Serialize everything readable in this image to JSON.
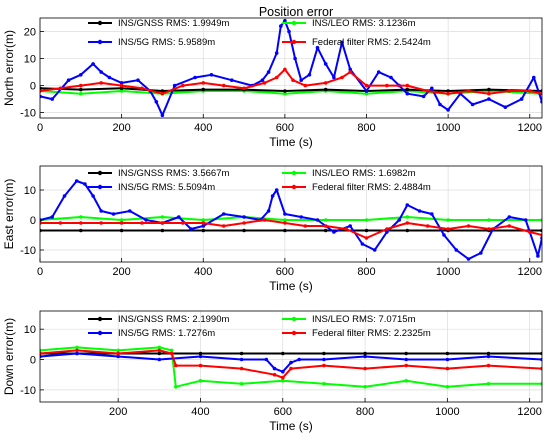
{
  "chart_data": [
    {
      "type": "line",
      "title": "Position error",
      "xlabel": "Time (s)",
      "ylabel": "North error(m)",
      "xlim": [
        0,
        1230
      ],
      "ylim": [
        -12,
        25
      ],
      "xticks": [
        0,
        200,
        400,
        600,
        800,
        1000,
        1200
      ],
      "yticks": [
        -10,
        0,
        10,
        20
      ],
      "grid": true,
      "legend_position": "top",
      "series": [
        {
          "name": "INS/GNSS RMS: 1.9949m",
          "color": "#000000",
          "x": [
            0,
            100,
            200,
            300,
            400,
            500,
            600,
            700,
            800,
            900,
            1000,
            1100,
            1230
          ],
          "y": [
            -1,
            -1.5,
            -1,
            -2,
            -1.5,
            -1.5,
            -2,
            -1.5,
            -2,
            -1.5,
            -2,
            -1.5,
            -2
          ]
        },
        {
          "name": "INS/LEO RMS: 3.1236m",
          "color": "#00ff00",
          "x": [
            0,
            100,
            200,
            300,
            400,
            500,
            600,
            700,
            800,
            900,
            1000,
            1100,
            1230
          ],
          "y": [
            -2,
            -3,
            -2,
            -3,
            -2,
            -2,
            -3,
            -2,
            -3,
            -2,
            -3,
            -2,
            -3
          ]
        },
        {
          "name": "INS/5G RMS: 5.9589m",
          "color": "#0000ff",
          "x": [
            0,
            30,
            70,
            100,
            130,
            150,
            170,
            200,
            240,
            270,
            285,
            300,
            330,
            380,
            420,
            470,
            520,
            545,
            560,
            580,
            590,
            600,
            610,
            625,
            640,
            660,
            680,
            700,
            720,
            740,
            760,
            800,
            830,
            860,
            880,
            900,
            940,
            960,
            980,
            1000,
            1030,
            1060,
            1100,
            1140,
            1180,
            1210,
            1230
          ],
          "y": [
            -4,
            -5,
            2,
            4,
            8,
            5,
            3,
            1,
            2,
            -2,
            -6,
            -11,
            0,
            3,
            4,
            2,
            0,
            2,
            5,
            12,
            22,
            24,
            20,
            10,
            2,
            4,
            14,
            8,
            3,
            16,
            6,
            -2,
            5,
            3,
            0,
            -3,
            -4,
            -1,
            -7,
            -9,
            -3,
            -7,
            -5,
            -8,
            -5,
            3,
            -6
          ]
        },
        {
          "name": "Federal filter RMS: 2.5424m",
          "color": "#ff0000",
          "x": [
            0,
            50,
            100,
            150,
            200,
            250,
            300,
            350,
            400,
            450,
            500,
            550,
            580,
            600,
            620,
            650,
            700,
            740,
            760,
            800,
            850,
            900,
            950,
            1000,
            1050,
            1100,
            1150,
            1200,
            1230
          ],
          "y": [
            -2,
            -1,
            0,
            1,
            0,
            -1,
            -3,
            0,
            1,
            0,
            -1,
            1,
            3,
            6,
            2,
            0,
            1,
            3,
            5,
            0,
            0,
            0,
            -2,
            -3,
            -2,
            -3,
            -2,
            -2,
            -3
          ]
        }
      ]
    },
    {
      "type": "line",
      "xlabel": "Time (s)",
      "ylabel": "East error(m)",
      "xlim": [
        0,
        1230
      ],
      "ylim": [
        -14,
        18
      ],
      "xticks": [
        0,
        200,
        400,
        600,
        800,
        1000,
        1200
      ],
      "yticks": [
        -10,
        0,
        10
      ],
      "grid": true,
      "legend_position": "top",
      "series": [
        {
          "name": "INS/GNSS RMS: 3.5667m",
          "color": "#000000",
          "x": [
            0,
            100,
            200,
            300,
            400,
            500,
            600,
            700,
            800,
            900,
            1000,
            1100,
            1230
          ],
          "y": [
            -3.5,
            -3.5,
            -3.5,
            -3.5,
            -3.5,
            -3.5,
            -3.5,
            -3.5,
            -3.5,
            -3.5,
            -3.5,
            -3.5,
            -3.5
          ]
        },
        {
          "name": "INS/LEO RMS: 1.6982m",
          "color": "#00ff00",
          "x": [
            0,
            100,
            200,
            300,
            400,
            500,
            600,
            700,
            800,
            900,
            1000,
            1100,
            1230
          ],
          "y": [
            0,
            1,
            0,
            1,
            0,
            1,
            0,
            0,
            0,
            1,
            0,
            0,
            0
          ]
        },
        {
          "name": "INS/5G RMS: 5.5094m",
          "color": "#0000ff",
          "x": [
            0,
            30,
            60,
            90,
            110,
            130,
            150,
            180,
            220,
            260,
            300,
            340,
            370,
            400,
            450,
            500,
            540,
            560,
            570,
            580,
            600,
            640,
            680,
            720,
            760,
            790,
            820,
            850,
            880,
            900,
            930,
            960,
            990,
            1020,
            1050,
            1080,
            1110,
            1150,
            1190,
            1220,
            1230
          ],
          "y": [
            0,
            1,
            8,
            13,
            12,
            8,
            3,
            2,
            3,
            0,
            -1,
            1,
            -3,
            -2,
            2,
            1,
            0,
            3,
            8,
            10,
            2,
            1,
            0,
            -4,
            -2,
            -8,
            -10,
            -4,
            0,
            5,
            3,
            2,
            -5,
            -10,
            -13,
            -11,
            -3,
            1,
            0,
            -12,
            -6
          ]
        },
        {
          "name": "Federal filter RMS: 2.4884m",
          "color": "#ff0000",
          "x": [
            0,
            50,
            100,
            150,
            200,
            250,
            300,
            350,
            400,
            450,
            500,
            550,
            600,
            650,
            700,
            750,
            800,
            850,
            900,
            950,
            1000,
            1050,
            1100,
            1150,
            1200,
            1230
          ],
          "y": [
            -1,
            -1,
            -1,
            -1,
            -1,
            -1,
            -1,
            -1,
            -1,
            -2,
            -1,
            0,
            -1,
            -2,
            -2,
            -3,
            -6,
            -3,
            -1,
            -2,
            -3,
            -2,
            -3,
            -2,
            -4,
            -5
          ]
        }
      ]
    },
    {
      "type": "line",
      "xlabel": "Time (s)",
      "ylabel": "Down error(m)",
      "xlim": [
        10,
        1230
      ],
      "ylim": [
        -14,
        16
      ],
      "xticks": [
        200,
        400,
        600,
        800,
        1000,
        1200
      ],
      "yticks": [
        -10,
        0,
        10
      ],
      "grid": true,
      "legend_position": "top",
      "series": [
        {
          "name": "INS/GNSS RMS: 2.1990m",
          "color": "#000000",
          "x": [
            10,
            100,
            200,
            300,
            400,
            500,
            600,
            700,
            800,
            900,
            1000,
            1100,
            1230
          ],
          "y": [
            2,
            2,
            2,
            2,
            2,
            2,
            2,
            2,
            2,
            2,
            2,
            2,
            2
          ]
        },
        {
          "name": "INS/LEO RMS: 7.0715m",
          "color": "#00ff00",
          "x": [
            10,
            100,
            200,
            300,
            330,
            340,
            400,
            500,
            600,
            700,
            800,
            900,
            1000,
            1100,
            1230
          ],
          "y": [
            3,
            4,
            3,
            4,
            3,
            -9,
            -7,
            -8,
            -7,
            -8,
            -9,
            -7,
            -9,
            -8,
            -8
          ]
        },
        {
          "name": "INS/5G RMS: 1.7276m",
          "color": "#0000ff",
          "x": [
            10,
            100,
            200,
            300,
            400,
            500,
            560,
            580,
            600,
            620,
            640,
            700,
            800,
            900,
            1000,
            1100,
            1230
          ],
          "y": [
            1,
            2,
            1,
            0,
            1,
            0,
            0,
            -3,
            -4,
            -1,
            0,
            0,
            1,
            0,
            0,
            1,
            0
          ]
        },
        {
          "name": "Federal filter RMS: 2.2325m",
          "color": "#ff0000",
          "x": [
            10,
            100,
            200,
            300,
            330,
            340,
            400,
            500,
            580,
            600,
            620,
            700,
            800,
            900,
            1000,
            1100,
            1230
          ],
          "y": [
            2,
            3,
            2,
            3,
            2,
            -2,
            -2,
            -3,
            -5,
            -6,
            -3,
            -2,
            -3,
            -2,
            -3,
            -2,
            -3
          ]
        }
      ]
    }
  ]
}
